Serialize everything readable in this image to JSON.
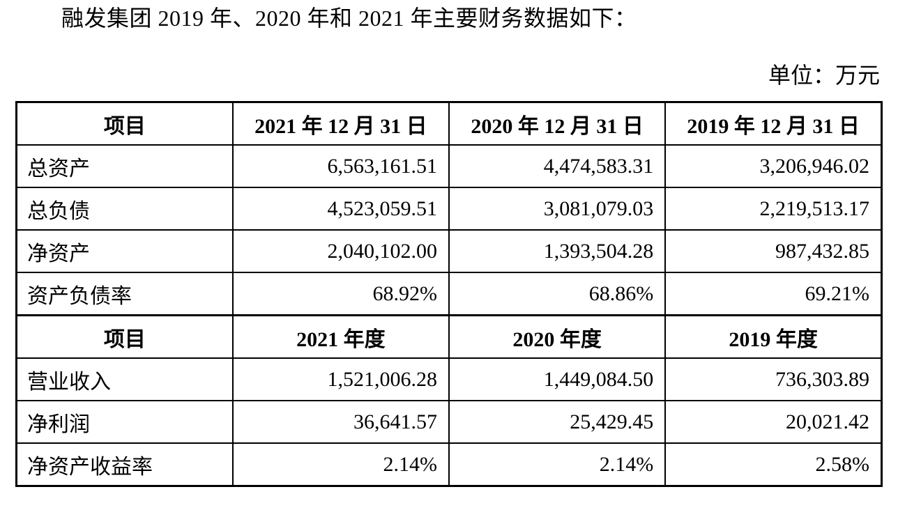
{
  "page": {
    "title": "融发集团 2019 年、2020 年和 2021 年主要财务数据如下：",
    "unit_label": "单位：万元"
  },
  "table": {
    "balance_header": {
      "item": "项目",
      "cols": [
        "2021 年 12 月 31 日",
        "2020 年 12 月 31 日",
        "2019 年 12 月 31 日"
      ]
    },
    "balance_rows": [
      {
        "label": "总资产",
        "values": [
          "6,563,161.51",
          "4,474,583.31",
          "3,206,946.02"
        ]
      },
      {
        "label": "总负债",
        "values": [
          "4,523,059.51",
          "3,081,079.03",
          "2,219,513.17"
        ]
      },
      {
        "label": "净资产",
        "values": [
          "2,040,102.00",
          "1,393,504.28",
          "987,432.85"
        ]
      },
      {
        "label": "资产负债率",
        "values": [
          "68.92%",
          "68.86%",
          "69.21%"
        ]
      }
    ],
    "income_header": {
      "item": "项目",
      "cols": [
        "2021 年度",
        "2020 年度",
        "2019 年度"
      ]
    },
    "income_rows": [
      {
        "label": "营业收入",
        "values": [
          "1,521,006.28",
          "1,449,084.50",
          "736,303.89"
        ]
      },
      {
        "label": "净利润",
        "values": [
          "36,641.57",
          "25,429.45",
          "20,021.42"
        ]
      },
      {
        "label": "净资产收益率",
        "values": [
          "2.14%",
          "2.14%",
          "2.58%"
        ]
      }
    ]
  }
}
